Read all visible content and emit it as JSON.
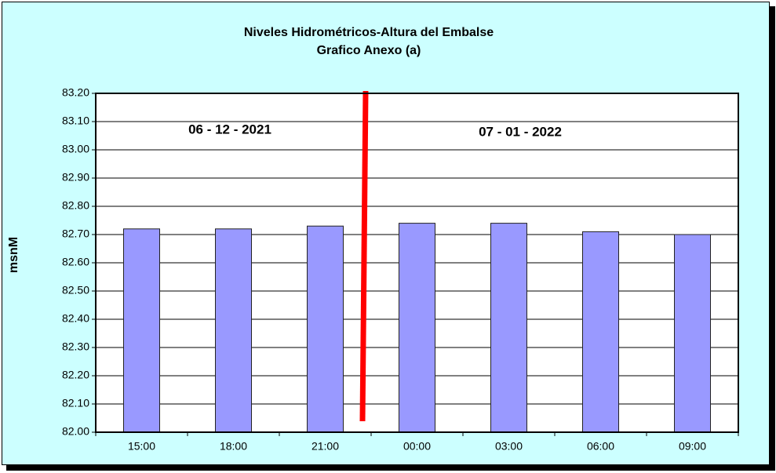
{
  "chart_data": {
    "type": "bar",
    "title": "Niveles Hidrométricos-Altura del Embalse",
    "subtitle": "Grafico Anexo (a)",
    "y_label": "msnM",
    "annotations": [
      "06 - 12 - 2021",
      "07 - 01 - 2022"
    ],
    "categories": [
      "15:00",
      "18:00",
      "21:00",
      "00:00",
      "03:00",
      "06:00",
      "09:00"
    ],
    "values": [
      82.72,
      82.72,
      82.73,
      82.74,
      82.74,
      82.71,
      82.7
    ],
    "color": "#9999ff",
    "ylim": [
      82.0,
      83.2
    ],
    "yticks": [
      {
        "value": 82.0,
        "label": "82.00"
      },
      {
        "value": 82.1,
        "label": "82.10"
      },
      {
        "value": 82.2,
        "label": "82.20"
      },
      {
        "value": 82.3,
        "label": "82.30"
      },
      {
        "value": 82.4,
        "label": "82.40"
      },
      {
        "value": 82.5,
        "label": "82.50"
      },
      {
        "value": 82.6,
        "label": "82.60"
      },
      {
        "value": 82.7,
        "label": "82.70"
      },
      {
        "value": 82.8,
        "label": "82.80"
      },
      {
        "value": 82.9,
        "label": "82.90"
      },
      {
        "value": 83.0,
        "label": "83.00"
      },
      {
        "value": 83.1,
        "label": "83.10"
      },
      {
        "value": 83.2,
        "label": "83.20"
      }
    ],
    "grid": true
  }
}
